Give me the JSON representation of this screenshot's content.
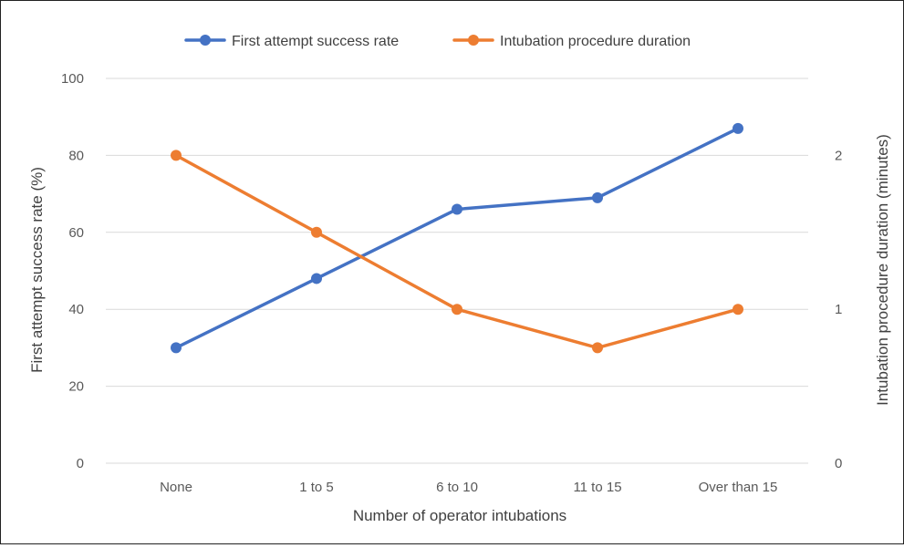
{
  "chart_data": {
    "type": "line",
    "categories": [
      "None",
      "1 to 5",
      "6 to 10",
      "11 to 15",
      "Over than 15"
    ],
    "xlabel": "Number of operator intubations",
    "ylabel": "First attempt success rate (%)",
    "y2label": "Intubation procedure duration (minutes)",
    "ylim": [
      0,
      100
    ],
    "yticks": [
      "0",
      "20",
      "40",
      "60",
      "80",
      "100"
    ],
    "y2lim": [
      0,
      2.5
    ],
    "y2ticks": [
      "0",
      "1",
      "2"
    ],
    "grid": true,
    "legend_position": "top",
    "series": [
      {
        "name": "First attempt success rate",
        "axis": "left",
        "color": "#4472c4",
        "values": [
          30,
          48,
          66,
          69,
          87
        ]
      },
      {
        "name": "Intubation procedure duration",
        "axis": "right",
        "color": "#ed7d31",
        "values": [
          2.0,
          1.5,
          1.0,
          0.75,
          1.0
        ]
      }
    ]
  }
}
